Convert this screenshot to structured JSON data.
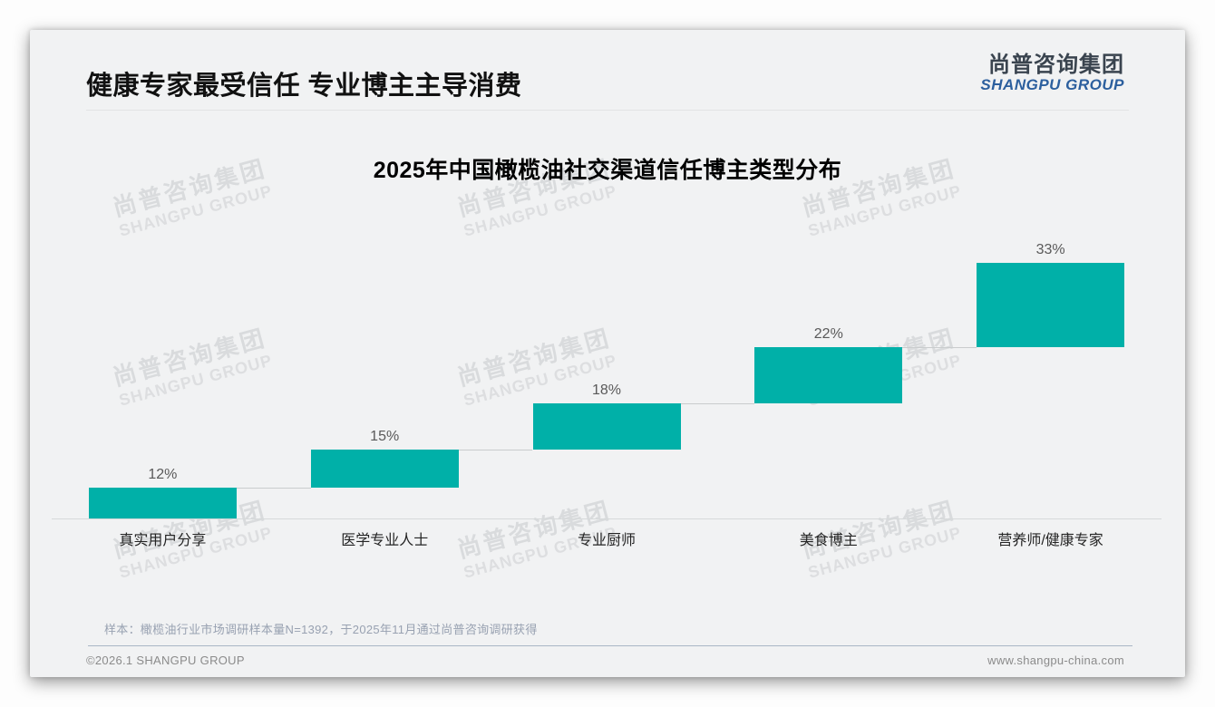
{
  "header": {
    "title": "健康专家最受信任 专业博主主导消费",
    "logo": {
      "cn": "尚普咨询集团",
      "en": "SHANGPU GROUP"
    }
  },
  "watermark": {
    "cn": "尚普咨询集团",
    "en": "SHANGPU GROUP"
  },
  "chart_data": {
    "type": "bar",
    "subtype": "stepped-waterfall",
    "title": "2025年中国橄榄油社交渠道信任博主类型分布",
    "categories": [
      "真实用户分享",
      "医学专业人士",
      "专业厨师",
      "美食博主",
      "营养师/健康专家"
    ],
    "values": [
      12,
      15,
      18,
      22,
      33
    ],
    "labels": [
      "12%",
      "15%",
      "18%",
      "22%",
      "33%"
    ],
    "unit": "%",
    "ylim": [
      0,
      100
    ],
    "cumulative_total": 100,
    "bar_color": "#00b0a8",
    "grid": false,
    "legend": "none"
  },
  "footnote": "样本：橄榄油行业市场调研样本量N=1392，于2025年11月通过尚普咨询调研获得",
  "footer": {
    "left": "©2026.1 SHANGPU GROUP",
    "right": "www.shangpu-china.com"
  }
}
